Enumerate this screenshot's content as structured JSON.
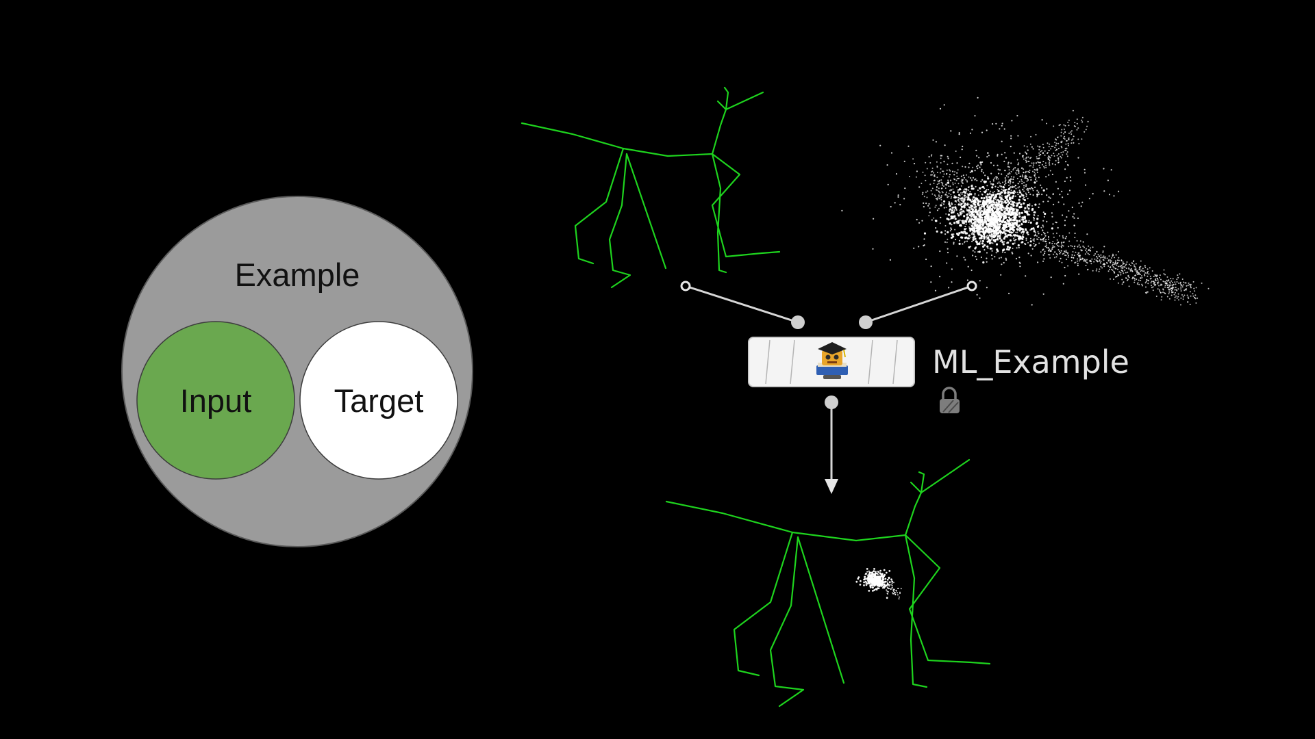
{
  "venn": {
    "outer_label": "Example",
    "input_label": "Input",
    "target_label": "Target",
    "colors": {
      "outer": "#9b9b9b",
      "input": "#6aa84f",
      "target": "#ffffff"
    }
  },
  "node": {
    "name": "ML_Example",
    "icon": "ml-training-icon",
    "status_icon": "lock-icon"
  },
  "colors": {
    "background": "#000000",
    "skeleton": "#1ed41e",
    "wire": "#d6d6d6"
  }
}
